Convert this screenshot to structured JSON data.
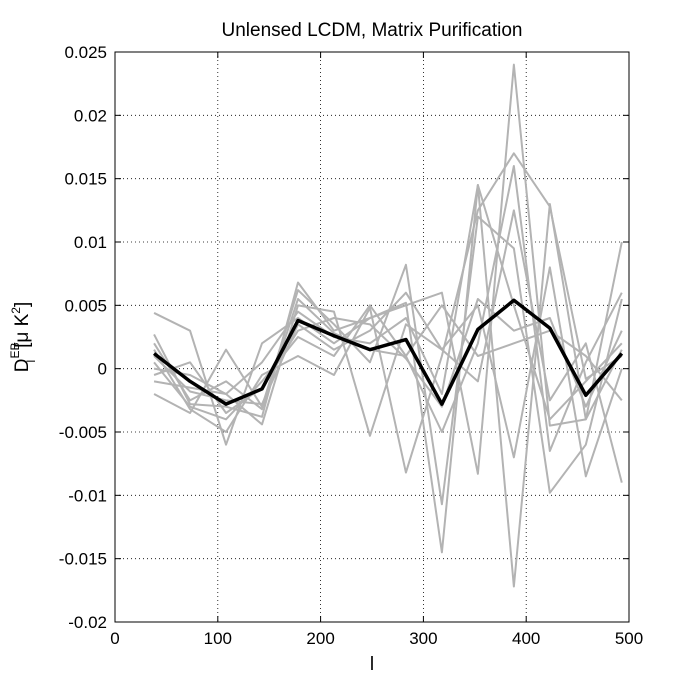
{
  "chart_data": {
    "type": "line",
    "title": "Unlensed LCDM, Matrix Purification",
    "xlabel": "l",
    "ylabel": {
      "base": "D",
      "sub": "l",
      "sup": "EB",
      "unit_open": "[μ K",
      "unit_sup": "2",
      "unit_close": "]"
    },
    "xlim": [
      0,
      500
    ],
    "ylim": [
      -0.02,
      0.025
    ],
    "xticks": [
      0,
      100,
      200,
      300,
      400,
      500
    ],
    "xtick_labels": [
      "0",
      "100",
      "200",
      "300",
      "400",
      "500"
    ],
    "yticks": [
      -0.02,
      -0.015,
      -0.01,
      -0.005,
      0,
      0.005,
      0.01,
      0.015,
      0.02,
      0.025
    ],
    "ytick_labels": [
      "-0.02",
      "-0.015",
      "-0.01",
      "-0.005",
      "0",
      "0.005",
      "0.01",
      "0.015",
      "0.02",
      "0.025"
    ],
    "grid": true,
    "legend": null,
    "x": [
      38,
      73,
      108,
      143,
      178,
      213,
      248,
      283,
      318,
      353,
      388,
      423,
      458,
      493
    ],
    "realization_color": "#b3b3b3",
    "mean_color": "#000000",
    "series": [
      {
        "values": [
          0.0027,
          -0.0028,
          -0.003,
          -0.0038,
          0.0068,
          0.003,
          0.004,
          0.0052,
          -0.0145,
          0.0145,
          -0.0172,
          0.013,
          -0.004,
          0.01
        ]
      },
      {
        "values": [
          -0.002,
          -0.0035,
          0.0015,
          -0.003,
          0.0062,
          0.0035,
          0.0005,
          0.0082,
          -0.0107,
          0.012,
          0.0095,
          -0.0098,
          -0.006,
          0.0055
        ]
      },
      {
        "values": [
          0.0044,
          0.003,
          -0.006,
          0.002,
          0.004,
          0.002,
          0.004,
          0.005,
          0.006,
          -0.0083,
          0.024,
          -0.0045,
          -0.004,
          0.0015
        ]
      },
      {
        "values": [
          0.0,
          -0.0005,
          -0.002,
          -0.0044,
          0.005,
          0.0045,
          -0.0053,
          0.0035,
          0.0015,
          0.005,
          -0.007,
          0.008,
          -0.0085,
          0.0
        ]
      },
      {
        "values": [
          0.0015,
          -0.0032,
          -0.005,
          -0.0005,
          0.001,
          -0.0005,
          0.0048,
          -0.0082,
          0.001,
          0.0125,
          0.017,
          0.0128,
          -0.0008,
          0.001
        ]
      },
      {
        "values": [
          0.002,
          -0.0025,
          -0.001,
          -0.0032,
          0.0055,
          0.0028,
          0.0015,
          0.001,
          0.005,
          0.001,
          0.002,
          0.003,
          0.001,
          -0.0025
        ]
      },
      {
        "values": [
          -0.0005,
          0.0005,
          -0.0035,
          -0.0015,
          0.003,
          0.004,
          0.0035,
          0.0008,
          -0.003,
          0.0055,
          0.003,
          0.004,
          -0.003,
          0.003
        ]
      },
      {
        "values": [
          0.001,
          -0.0018,
          -0.0025,
          -0.0028,
          0.0035,
          0.0015,
          0.003,
          0.006,
          0.0015,
          -0.001,
          0.0125,
          -0.0025,
          0.002,
          -0.009
        ]
      },
      {
        "values": [
          0.0005,
          -0.003,
          -0.004,
          -0.001,
          0.0025,
          0.001,
          0.005,
          0.001,
          -0.005,
          0.002,
          0.016,
          -0.0065,
          0.0005,
          0.006
        ]
      },
      {
        "values": [
          -0.001,
          -0.0015,
          -0.002,
          0.0005,
          0.0045,
          0.0025,
          0.002,
          0.004,
          -0.002,
          0.0145,
          0.005,
          -0.004,
          -0.001,
          0.002
        ]
      }
    ],
    "mean": {
      "values": [
        0.0012,
        -0.001,
        -0.0028,
        -0.0016,
        0.0038,
        0.0026,
        0.0015,
        0.0023,
        -0.0028,
        0.0031,
        0.0054,
        0.0032,
        -0.0021,
        0.0012
      ]
    }
  }
}
